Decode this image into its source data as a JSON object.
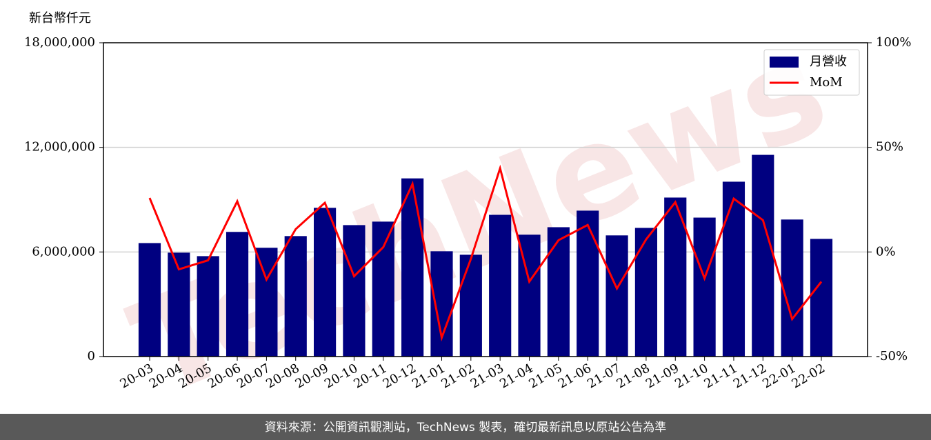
{
  "chart_data": {
    "type": "bar",
    "y_label": "新台幣仟元",
    "watermark": "TechNews",
    "footer": "資料來源：公開資訊觀測站，TechNews 製表，確切最新訊息以原站公告為準",
    "categories": [
      "20-03",
      "20-04",
      "20-05",
      "20-06",
      "20-07",
      "20-08",
      "20-09",
      "20-10",
      "20-11",
      "20-12",
      "21-01",
      "21-02",
      "21-03",
      "21-04",
      "21-05",
      "21-06",
      "21-07",
      "21-08",
      "21-09",
      "21-10",
      "21-11",
      "21-12",
      "22-01",
      "22-02"
    ],
    "series": [
      {
        "name": "月營收",
        "type": "bar",
        "color": "#000080",
        "values": [
          6510000,
          5960000,
          5760000,
          7150000,
          6240000,
          6910000,
          8530000,
          7540000,
          7740000,
          10220000,
          6040000,
          5840000,
          8130000,
          6990000,
          7420000,
          8370000,
          6950000,
          7380000,
          9120000,
          7970000,
          10030000,
          11570000,
          7860000,
          6750000
        ]
      },
      {
        "name": "MoM",
        "type": "line",
        "color": "#ff0000",
        "axis": "y2",
        "values": [
          25.8,
          -8.3,
          -4,
          24.2,
          -13.2,
          10.9,
          23.5,
          -11.6,
          2.3,
          32.5,
          -41,
          -3.3,
          40,
          -14.2,
          5.6,
          12.9,
          -17.5,
          6,
          23.8,
          -12.6,
          25.5,
          15.2,
          -32.1,
          -14.2
        ]
      }
    ],
    "ylim": [
      0,
      18000000
    ],
    "yticks": [
      0,
      {
        "value": 6000000,
        "label": "6,000,000"
      },
      {
        "value": 12000000,
        "label": "12,000,000"
      },
      {
        "value": 18000000,
        "label": "18,000,000"
      }
    ],
    "y2lim": [
      -50,
      100
    ],
    "y2ticks": [
      {
        "value": -50,
        "label": "-50%"
      },
      {
        "value": 0,
        "label": "0%"
      },
      {
        "value": 50,
        "label": "50%"
      },
      {
        "value": 100,
        "label": "100%"
      }
    ],
    "grid": true,
    "legend": "upper right"
  }
}
